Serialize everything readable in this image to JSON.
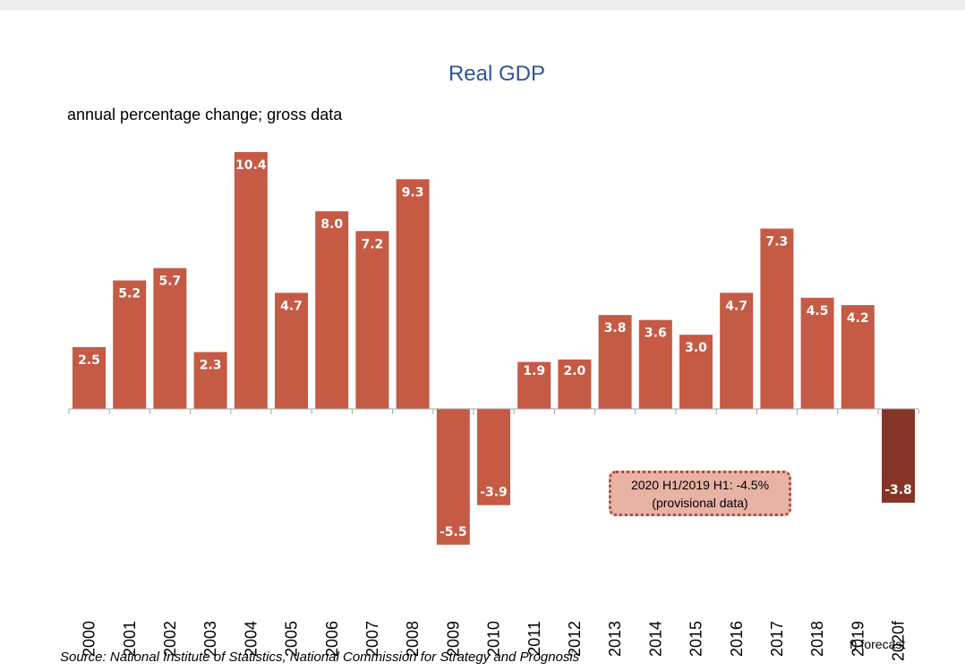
{
  "chart_data": {
    "type": "bar",
    "title": "Real GDP",
    "subtitle": "annual percentage change; gross data",
    "categories": [
      "2000",
      "2001",
      "2002",
      "2003",
      "2004",
      "2005",
      "2006",
      "2007",
      "2008",
      "2009",
      "2010",
      "2011",
      "2012",
      "2013",
      "2014",
      "2015",
      "2016",
      "2017",
      "2018",
      "2019",
      "2020f"
    ],
    "values": [
      2.5,
      5.2,
      5.7,
      2.3,
      10.4,
      4.7,
      8.0,
      7.2,
      9.3,
      -5.5,
      -3.9,
      1.9,
      2.0,
      3.8,
      3.6,
      3.0,
      4.7,
      7.3,
      4.5,
      4.2,
      -3.8
    ],
    "value_labels": [
      "2.5",
      "5.2",
      "5.7",
      "2.3",
      "10.4",
      "4.7",
      "8.0",
      "7.2",
      "9.3",
      "-5.5",
      "-3.9",
      "1.9",
      "2.0",
      "3.8",
      "3.6",
      "3.0",
      "4.7",
      "7.3",
      "4.5",
      "4.2",
      "-3.8"
    ],
    "forecast_index": 20,
    "colors": {
      "bar": "#c55a45",
      "forecast_bar": "#843527",
      "title": "#2f5597"
    },
    "grid": false,
    "annotation": {
      "line1": "2020 H1/2019 H1: -4.5%",
      "line2": "(provisional data)"
    },
    "footnote": "f) forecast",
    "source": "Source: National Institute of Statistics, National Commission for Strategy and Prognosis"
  }
}
